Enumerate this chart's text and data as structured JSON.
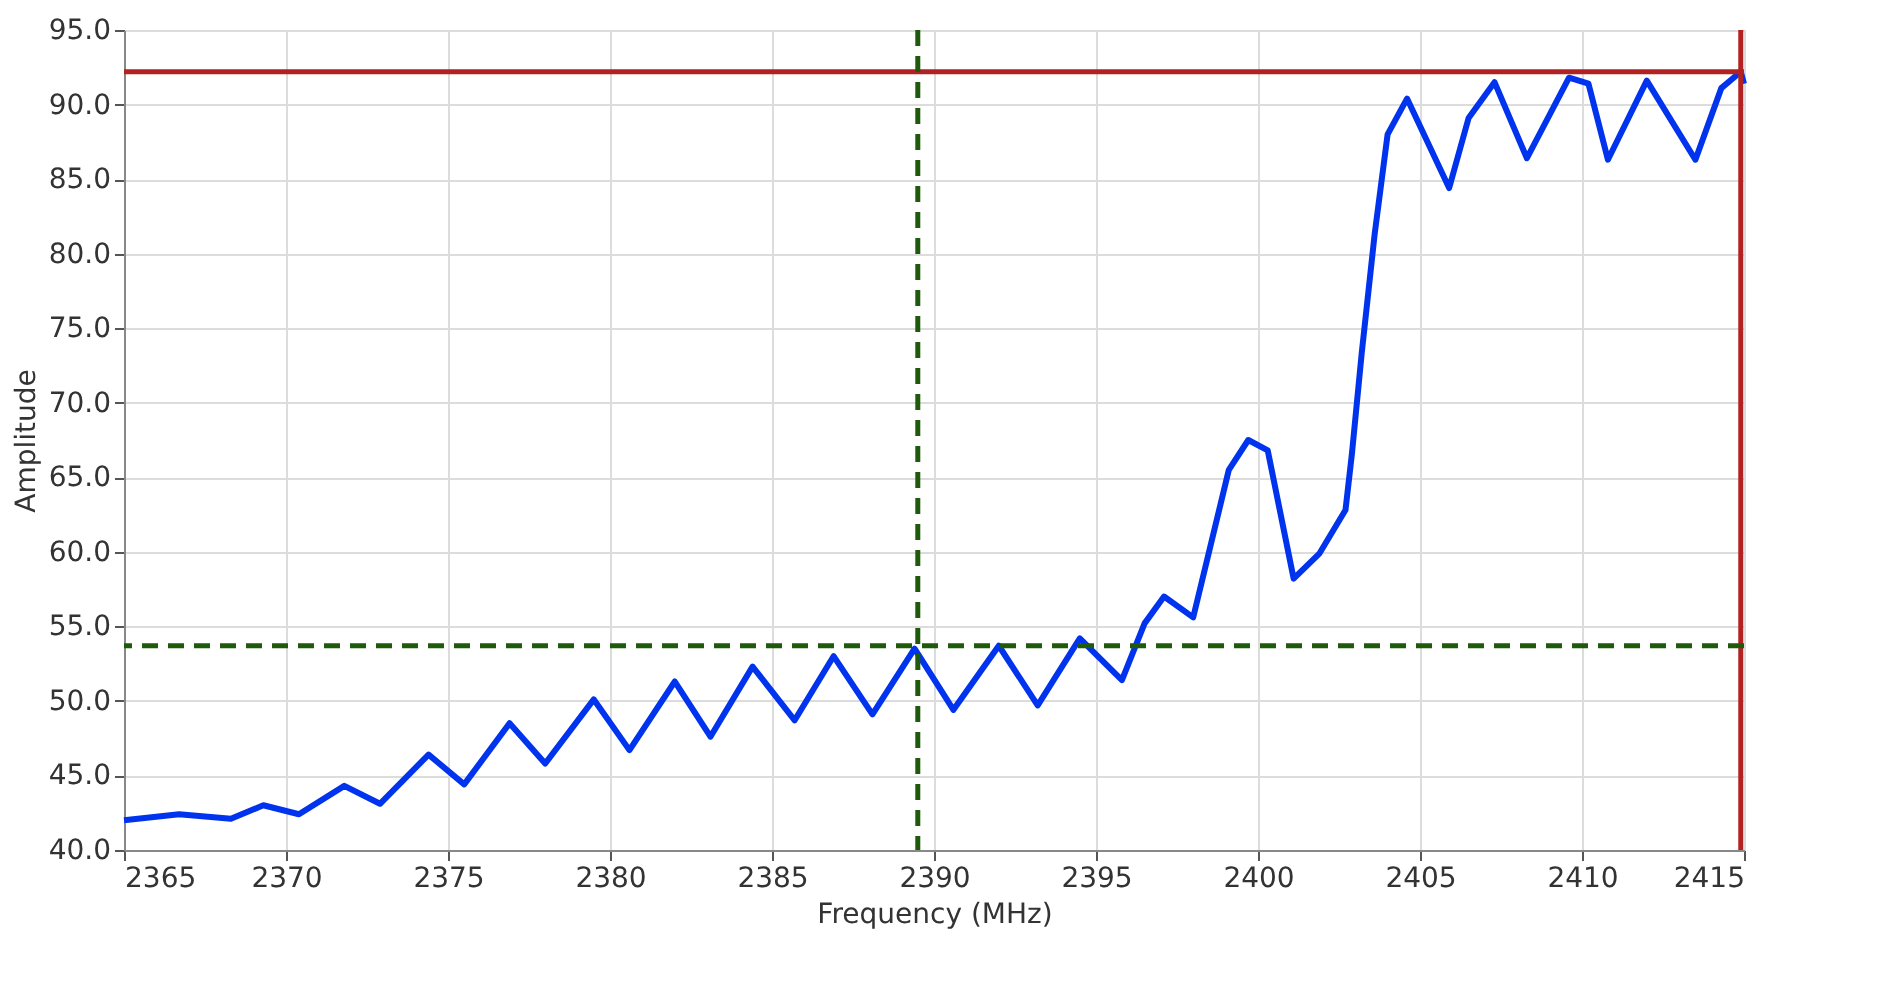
{
  "chart_data": {
    "type": "line",
    "xlabel": "Frequency (MHz)",
    "ylabel": "Amplitude",
    "x": [
      2365,
      2366.7,
      2368.3,
      2369.3,
      2370.4,
      2371.8,
      2372.9,
      2374.4,
      2375.5,
      2376.9,
      2378.0,
      2379.5,
      2380.6,
      2382.0,
      2383.1,
      2384.4,
      2385.7,
      2386.9,
      2388.1,
      2389.4,
      2390.6,
      2392.0,
      2393.2,
      2394.5,
      2395.8,
      2396.5,
      2397.1,
      2398.0,
      2399.1,
      2399.7,
      2400.3,
      2401.1,
      2401.9,
      2402.7,
      2402.9,
      2403.2,
      2403.6,
      2404.0,
      2404.6,
      2405.9,
      2406.5,
      2407.3,
      2408.3,
      2409.6,
      2410.2,
      2410.8,
      2412.0,
      2413.5,
      2414.3,
      2414.9,
      2415
    ],
    "series": [
      {
        "color": "#0033ee",
        "values": [
          42.0,
          42.4,
          42.1,
          43.0,
          42.4,
          44.3,
          43.1,
          46.4,
          44.4,
          48.5,
          45.8,
          50.1,
          46.7,
          51.3,
          47.6,
          52.3,
          48.7,
          53.0,
          49.1,
          53.5,
          49.4,
          53.7,
          49.7,
          54.2,
          51.4,
          55.2,
          57.0,
          55.6,
          65.5,
          67.5,
          66.8,
          58.2,
          59.9,
          62.8,
          66.6,
          73.3,
          81.3,
          88.0,
          90.4,
          84.4,
          89.1,
          91.5,
          86.4,
          91.8,
          91.4,
          86.3,
          91.6,
          86.3,
          91.1,
          92.2,
          91.4
        ]
      }
    ],
    "xlim": [
      2365,
      2415
    ],
    "xticks": [
      2365,
      2370,
      2375,
      2380,
      2385,
      2390,
      2395,
      2400,
      2405,
      2410,
      2415
    ],
    "ylim": [
      40,
      95
    ],
    "yticks": [
      {
        "value": 40,
        "label": "40.0"
      },
      {
        "value": 45,
        "label": "45.0"
      },
      {
        "value": 50,
        "label": "50.0"
      },
      {
        "value": 55,
        "label": "55.0"
      },
      {
        "value": 60,
        "label": "60.0"
      },
      {
        "value": 65,
        "label": "65.0"
      },
      {
        "value": 70,
        "label": "70.0"
      },
      {
        "value": 75,
        "label": "75.0"
      },
      {
        "value": 80,
        "label": "80.0"
      },
      {
        "value": 85,
        "label": "85.0"
      },
      {
        "value": 90,
        "label": "90.0"
      },
      {
        "value": 95,
        "label": "95.0"
      }
    ],
    "ref_lines": [
      {
        "axis": "y",
        "value": 92.2,
        "color": "#b22222",
        "line_style": "solid"
      },
      {
        "axis": "x",
        "value": 2414.9,
        "color": "#b22222",
        "line_style": "solid"
      },
      {
        "axis": "y",
        "value": 53.7,
        "color": "#1e5a0a",
        "line_style": "dashed"
      },
      {
        "axis": "x",
        "value": 2389.5,
        "color": "#1e5a0a",
        "line_style": "dashed"
      }
    ],
    "grid": true,
    "marker": "none",
    "line_style": "solid"
  }
}
